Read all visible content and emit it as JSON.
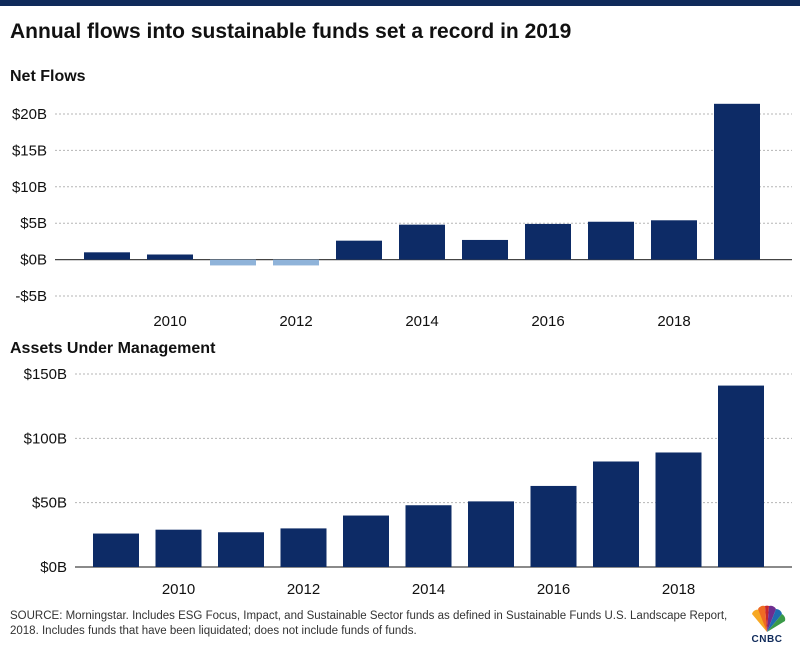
{
  "title": "Annual flows into sustainable funds set a record in 2019",
  "colors": {
    "bar": "#0d2b66",
    "negative_bar": "#8fb3d9",
    "grid": "#b5b5b5",
    "baseline": "#444444",
    "topbar": "#0f2a5a"
  },
  "chart_data": [
    {
      "type": "bar",
      "title": "Net Flows",
      "xlabel": "",
      "ylabel": "",
      "x": [
        2009,
        2010,
        2011,
        2012,
        2013,
        2014,
        2015,
        2016,
        2017,
        2018,
        2019
      ],
      "xticks": [
        2010,
        2012,
        2014,
        2016,
        2018
      ],
      "values": [
        1.0,
        0.7,
        -0.8,
        -0.8,
        2.6,
        4.8,
        2.7,
        4.9,
        5.2,
        5.4,
        21.4
      ],
      "ylim": [
        -5,
        20
      ],
      "yticks": [
        -5,
        0,
        5,
        10,
        15,
        20
      ],
      "yticklabels": [
        "-$5B",
        "$0B",
        "$5B",
        "$10B",
        "$15B",
        "$20B"
      ],
      "units": "$B",
      "grid": true
    },
    {
      "type": "bar",
      "title": "Assets Under Management",
      "xlabel": "",
      "ylabel": "",
      "x": [
        2009,
        2010,
        2011,
        2012,
        2013,
        2014,
        2015,
        2016,
        2017,
        2018,
        2019
      ],
      "xticks": [
        2010,
        2012,
        2014,
        2016,
        2018
      ],
      "values": [
        26,
        29,
        27,
        30,
        40,
        48,
        51,
        63,
        82,
        89,
        141
      ],
      "ylim": [
        0,
        150
      ],
      "yticks": [
        0,
        50,
        100,
        150
      ],
      "yticklabels": [
        "$0B",
        "$50B",
        "$100B",
        "$150B"
      ],
      "units": "$B",
      "grid": true
    }
  ],
  "source": "SOURCE: Morningstar. Includes ESG Focus, Impact, and Sustainable Sector funds as defined in Sustainable Funds U.S. Landscape Report, 2018. Includes funds that have been liquidated; does not include funds of funds.",
  "logo": {
    "text": "CNBC"
  }
}
